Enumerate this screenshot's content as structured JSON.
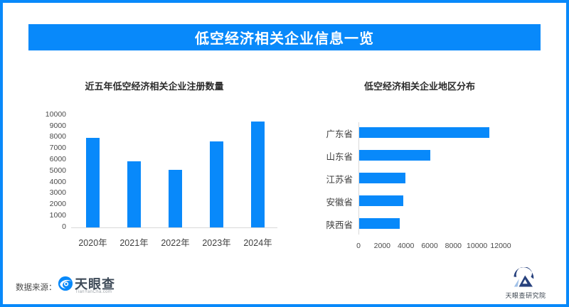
{
  "banner": {
    "title": "低空经济相关企业信息一览"
  },
  "colors": {
    "accent_blue": "#0889fa",
    "axis_gray": "#d9d9d9",
    "banner_text": "#ffffff",
    "tick_text": "#4a4a4a",
    "label_text": "#3f3f3f",
    "tyc_logotype": "#3e4a58",
    "institute_navy": "#27417d",
    "institute_accent": "#9fc0e8"
  },
  "chart_data": [
    {
      "type": "bar",
      "orientation": "vertical",
      "title": "近五年低空经济相关企业注册数量",
      "categories": [
        "2020年",
        "2021年",
        "2022年",
        "2023年",
        "2024年"
      ],
      "values": [
        8000,
        5900,
        5100,
        7650,
        9400
      ],
      "xlabel": "",
      "ylabel": "",
      "ylim": [
        0,
        10000
      ],
      "yticks": [
        0,
        1000,
        2000,
        3000,
        4000,
        5000,
        6000,
        7000,
        8000,
        9000,
        10000
      ],
      "grid": false,
      "legend": "none",
      "bar_color": "#0889fa"
    },
    {
      "type": "bar",
      "orientation": "horizontal",
      "title": "低空经济相关企业地区分布",
      "categories": [
        "广东省",
        "山东省",
        "江苏省",
        "安徽省",
        "陕西省"
      ],
      "values": [
        11000,
        6000,
        3900,
        3700,
        3400
      ],
      "xlabel": "",
      "ylabel": "",
      "xlim": [
        0,
        12000
      ],
      "xticks": [
        0,
        2000,
        4000,
        6000,
        8000,
        10000,
        12000
      ],
      "grid": false,
      "legend": "none",
      "bar_color": "#0889fa"
    }
  ],
  "footer": {
    "source_label": "数据来源：",
    "tianyancha": {
      "icon": "tianyancha-eye-icon",
      "logotype": "天眼查",
      "subtext": "TianYanCha.com"
    },
    "institute": {
      "icon": "institute-logo-icon",
      "label": "天眼查研究院"
    }
  }
}
